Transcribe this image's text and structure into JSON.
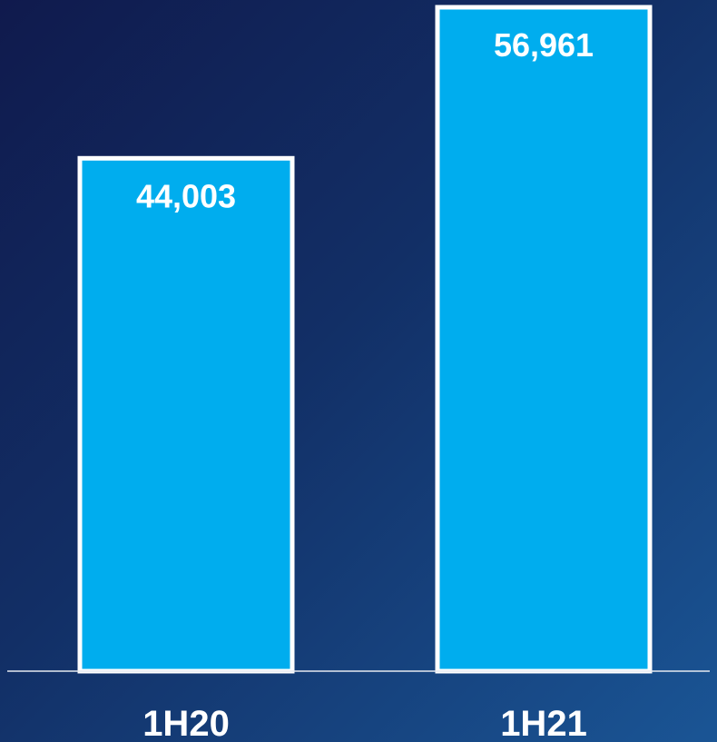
{
  "chart_data": {
    "type": "bar",
    "categories": [
      "1H20",
      "1H21"
    ],
    "values": [
      44003,
      56961
    ],
    "value_labels": [
      "44,003",
      "56,961"
    ],
    "title": "",
    "xlabel": "",
    "ylabel": "",
    "ylim": [
      0,
      56961
    ],
    "grid": false,
    "legend": "none"
  },
  "colors": {
    "bar_fill": "#00adee",
    "bar_outline": "#ffffff",
    "text": "#ffffff",
    "baseline": "#e6e9f0"
  }
}
